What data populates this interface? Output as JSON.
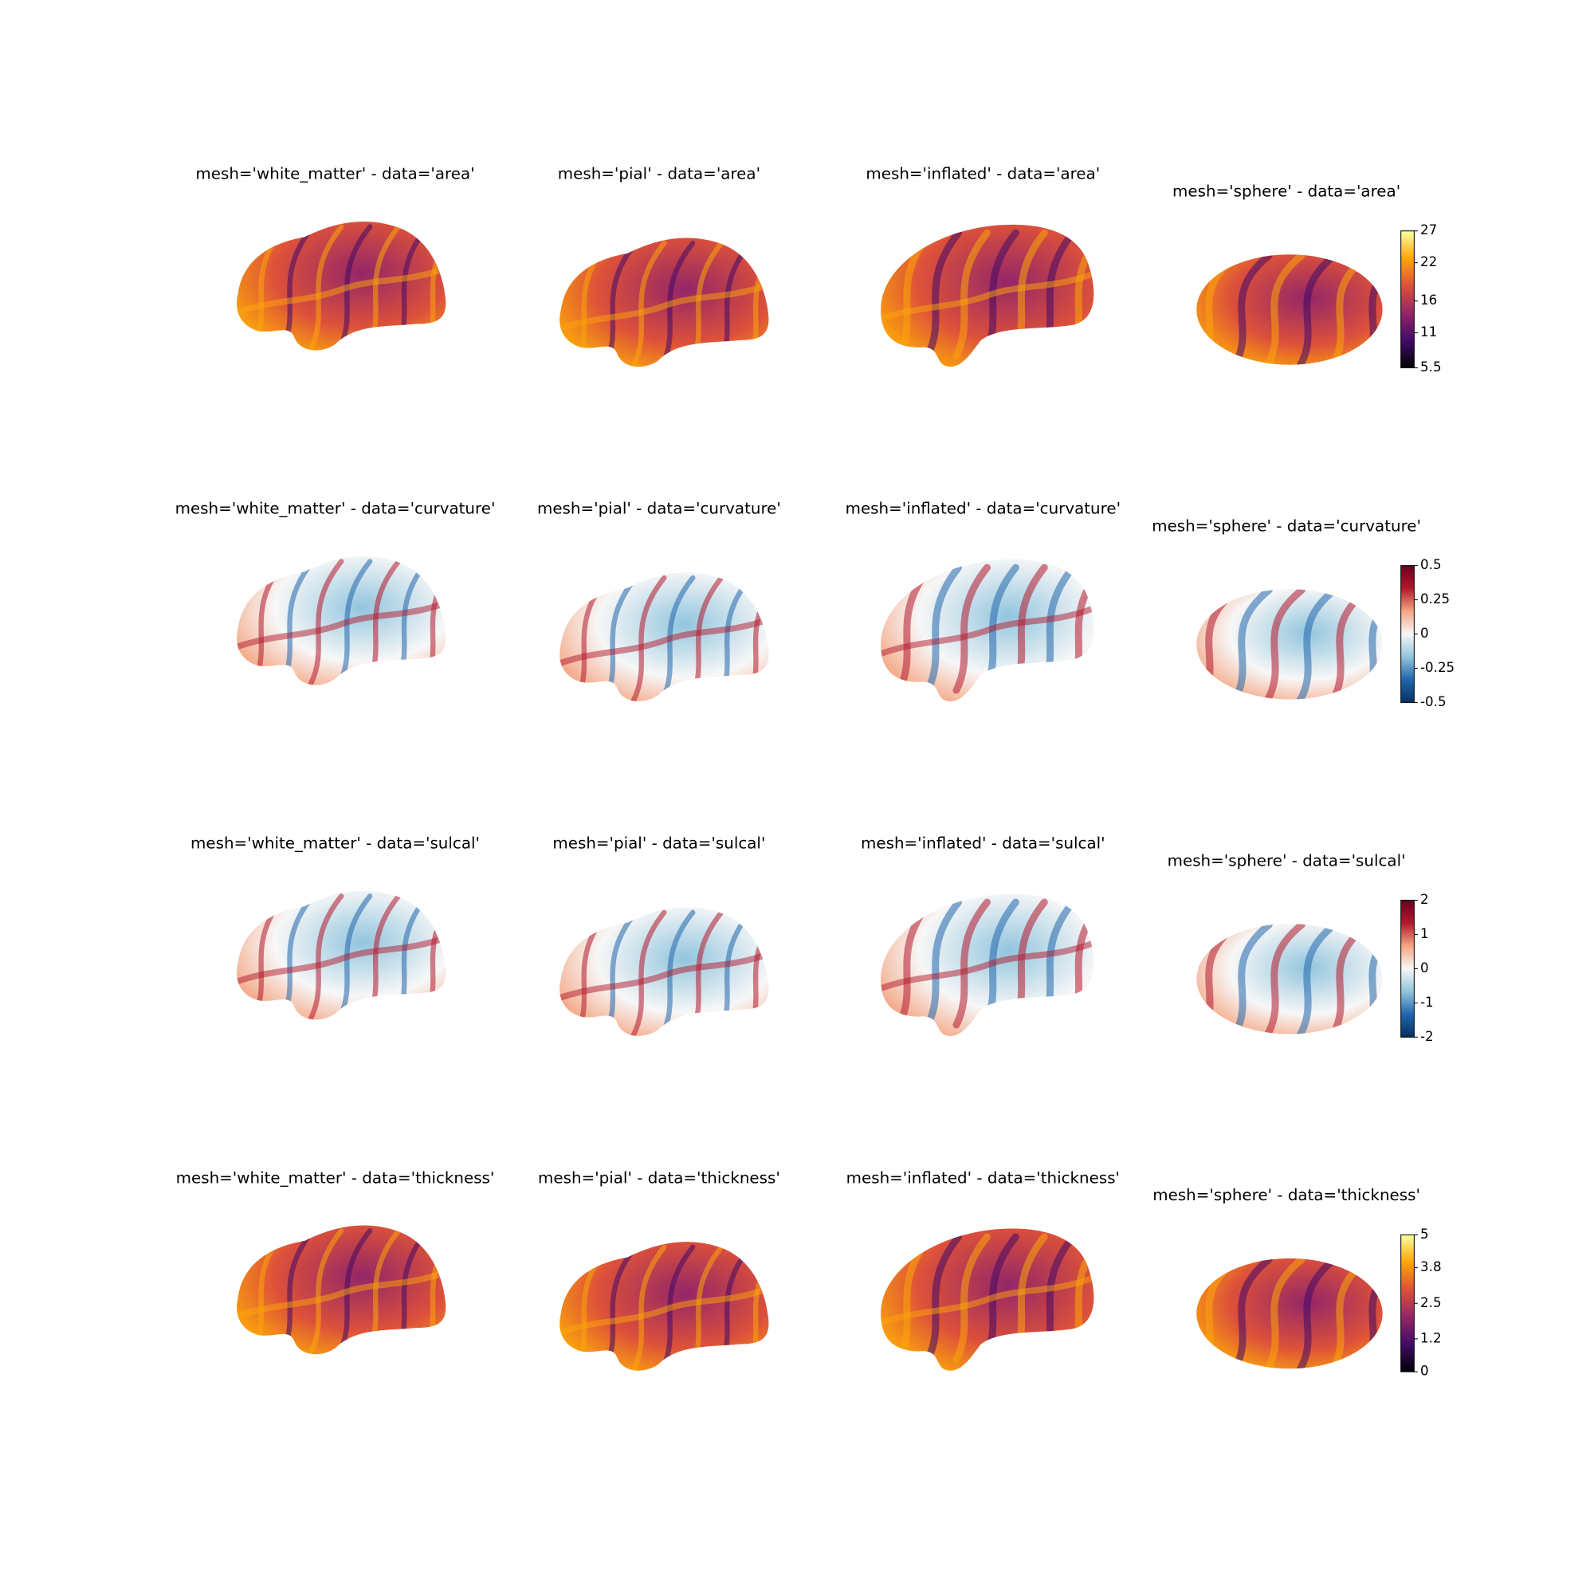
{
  "rows": [
    {
      "titles": [
        "mesh='white_matter' - data='area'",
        "mesh='pial' - data='area'",
        "mesh='inflated' - data='area'",
        "mesh='sphere' - data='area'"
      ],
      "colorbar": {
        "lim": [
          5.5,
          27
        ],
        "ticks": [
          5.5,
          11,
          16,
          22,
          27
        ],
        "colors": [
          "#000004",
          "#420a68",
          "#932667",
          "#dd513a",
          "#fca50a",
          "#fcffa4"
        ]
      }
    },
    {
      "titles": [
        "mesh='white_matter' - data='curvature'",
        "mesh='pial' - data='curvature'",
        "mesh='inflated' - data='curvature'",
        "mesh='sphere' - data='curvature'"
      ],
      "colorbar": {
        "lim": [
          -0.5,
          0.5
        ],
        "ticks": [
          -0.5,
          -0.25,
          0,
          0.25,
          0.5
        ],
        "colors": [
          "#053061",
          "#2166ac",
          "#92c5de",
          "#f7f7f7",
          "#f4a582",
          "#b2182b",
          "#67001f"
        ]
      }
    },
    {
      "titles": [
        "mesh='white_matter' - data='sulcal'",
        "mesh='pial' - data='sulcal'",
        "mesh='inflated' - data='sulcal'",
        "mesh='sphere' - data='sulcal'"
      ],
      "colorbar": {
        "lim": [
          -2,
          2
        ],
        "ticks": [
          -2,
          -1,
          0,
          1,
          2
        ],
        "colors": [
          "#053061",
          "#2166ac",
          "#92c5de",
          "#f7f7f7",
          "#f4a582",
          "#b2182b",
          "#67001f"
        ]
      }
    },
    {
      "titles": [
        "mesh='white_matter' - data='thickness'",
        "mesh='pial' - data='thickness'",
        "mesh='inflated' - data='thickness'",
        "mesh='sphere' - data='thickness'"
      ],
      "colorbar": {
        "lim": [
          0,
          5
        ],
        "ticks": [
          0,
          1.2,
          2.5,
          3.8,
          5
        ],
        "colors": [
          "#000004",
          "#420a68",
          "#932667",
          "#dd513a",
          "#fca50a",
          "#fcffa4"
        ]
      }
    }
  ]
}
